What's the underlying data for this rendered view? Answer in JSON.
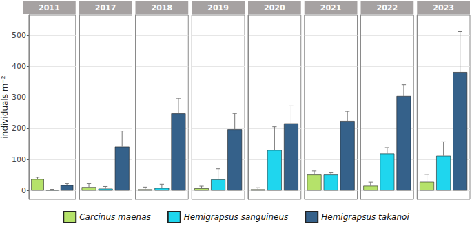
{
  "chart_data": {
    "type": "bar",
    "facets": [
      "2011",
      "2017",
      "2018",
      "2019",
      "2020",
      "2021",
      "2022",
      "2023"
    ],
    "ylabel": "individuals m⁻²",
    "ylim": [
      -28,
      565
    ],
    "yticks": [
      0,
      100,
      200,
      300,
      400,
      500
    ],
    "grid": true,
    "legend": "bottom",
    "tick_labels": "y",
    "series": [
      {
        "name": "Carcinus maenas",
        "color": "#b5e26a",
        "values": [
          37,
          11,
          4,
          7,
          4,
          51,
          15,
          28
        ],
        "errors": [
          6,
          11,
          7,
          7,
          5,
          12,
          12,
          24
        ]
      },
      {
        "name": "Hemigrapsus sanguineus",
        "color": "#1fd6ee",
        "values": [
          2,
          6,
          8,
          36,
          130,
          51,
          119,
          112
        ],
        "errors": [
          2,
          7,
          12,
          34,
          75,
          6,
          19,
          45
        ]
      },
      {
        "name": "Hemigrapsus takanoi",
        "color": "#35618a",
        "values": [
          17,
          141,
          248,
          197,
          216,
          224,
          304,
          381
        ],
        "errors": [
          5,
          51,
          49,
          51,
          56,
          31,
          36,
          132
        ]
      }
    ]
  }
}
